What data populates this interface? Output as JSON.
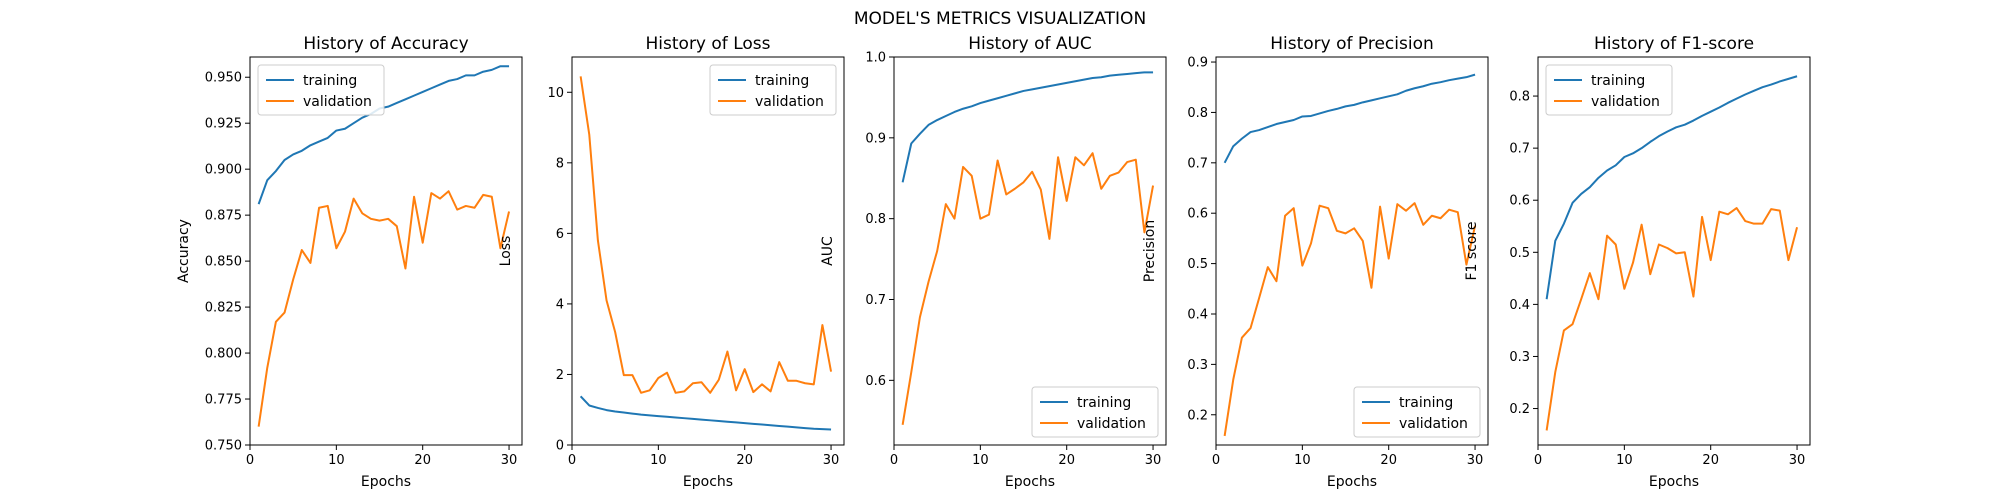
{
  "figure": {
    "suptitle": "MODEL'S METRICS VISUALIZATION"
  },
  "colors": {
    "training": "#1f77b4",
    "validation": "#ff7f0e",
    "axes": "#000000",
    "legend_border": "#cccccc"
  },
  "chart_data": [
    {
      "type": "line",
      "title": "History of Accuracy",
      "xlabel": "Epochs",
      "ylabel": "Accuracy",
      "xlim": [
        0,
        31.5
      ],
      "ylim": [
        0.75,
        0.961
      ],
      "xticks": [
        0,
        10,
        20,
        30
      ],
      "yticks": [
        0.75,
        0.775,
        0.8,
        0.825,
        0.85,
        0.875,
        0.9,
        0.925,
        0.95
      ],
      "ytick_labels": [
        "0.750",
        "0.775",
        "0.800",
        "0.825",
        "0.850",
        "0.875",
        "0.900",
        "0.925",
        "0.950"
      ],
      "legend_loc": "upper left",
      "x": [
        1,
        2,
        3,
        4,
        5,
        6,
        7,
        8,
        9,
        10,
        11,
        12,
        13,
        14,
        15,
        16,
        17,
        18,
        19,
        20,
        21,
        22,
        23,
        24,
        25,
        26,
        27,
        28,
        29,
        30
      ],
      "series": [
        {
          "name": "training",
          "values": [
            0.881,
            0.894,
            0.899,
            0.905,
            0.908,
            0.91,
            0.913,
            0.915,
            0.917,
            0.921,
            0.922,
            0.925,
            0.928,
            0.93,
            0.933,
            0.934,
            0.936,
            0.938,
            0.94,
            0.942,
            0.944,
            0.946,
            0.948,
            0.949,
            0.951,
            0.951,
            0.953,
            0.954,
            0.956,
            0.956
          ]
        },
        {
          "name": "validation",
          "values": [
            0.76,
            0.792,
            0.817,
            0.822,
            0.84,
            0.856,
            0.849,
            0.879,
            0.88,
            0.857,
            0.866,
            0.884,
            0.876,
            0.873,
            0.872,
            0.873,
            0.869,
            0.846,
            0.885,
            0.86,
            0.887,
            0.884,
            0.888,
            0.878,
            0.88,
            0.879,
            0.886,
            0.885,
            0.857,
            0.877
          ]
        }
      ]
    },
    {
      "type": "line",
      "title": "History of Loss",
      "xlabel": "Epochs",
      "ylabel": "Loss",
      "xlim": [
        0,
        31.5
      ],
      "ylim": [
        0,
        11
      ],
      "xticks": [
        0,
        10,
        20,
        30
      ],
      "yticks": [
        0,
        2,
        4,
        6,
        8,
        10
      ],
      "ytick_labels": [
        "0",
        "2",
        "4",
        "6",
        "8",
        "10"
      ],
      "legend_loc": "upper right",
      "x": [
        1,
        2,
        3,
        4,
        5,
        6,
        7,
        8,
        9,
        10,
        11,
        12,
        13,
        14,
        15,
        16,
        17,
        18,
        19,
        20,
        21,
        22,
        23,
        24,
        25,
        26,
        27,
        28,
        29,
        30
      ],
      "series": [
        {
          "name": "training",
          "values": [
            1.38,
            1.12,
            1.05,
            0.99,
            0.95,
            0.92,
            0.89,
            0.86,
            0.84,
            0.82,
            0.8,
            0.78,
            0.76,
            0.74,
            0.72,
            0.7,
            0.68,
            0.66,
            0.64,
            0.62,
            0.6,
            0.58,
            0.56,
            0.54,
            0.52,
            0.5,
            0.48,
            0.46,
            0.45,
            0.44
          ]
        },
        {
          "name": "validation",
          "values": [
            10.45,
            8.8,
            5.8,
            4.1,
            3.2,
            1.98,
            1.98,
            1.48,
            1.55,
            1.9,
            2.05,
            1.48,
            1.52,
            1.75,
            1.78,
            1.48,
            1.85,
            2.65,
            1.55,
            2.15,
            1.5,
            1.72,
            1.52,
            2.35,
            1.82,
            1.82,
            1.75,
            1.72,
            3.4,
            2.08
          ]
        }
      ]
    },
    {
      "type": "line",
      "title": "History of AUC",
      "xlabel": "Epochs",
      "ylabel": "AUC",
      "xlim": [
        0,
        31.5
      ],
      "ylim": [
        0.52,
        1.0
      ],
      "xticks": [
        0,
        10,
        20,
        30
      ],
      "yticks": [
        0.6,
        0.7,
        0.8,
        0.9,
        1.0
      ],
      "ytick_labels": [
        "0.6",
        "0.7",
        "0.8",
        "0.9",
        "1.0"
      ],
      "legend_loc": "lower right",
      "x": [
        1,
        2,
        3,
        4,
        5,
        6,
        7,
        8,
        9,
        10,
        11,
        12,
        13,
        14,
        15,
        16,
        17,
        18,
        19,
        20,
        21,
        22,
        23,
        24,
        25,
        26,
        27,
        28,
        29,
        30
      ],
      "series": [
        {
          "name": "training",
          "values": [
            0.845,
            0.893,
            0.905,
            0.916,
            0.922,
            0.927,
            0.932,
            0.936,
            0.939,
            0.943,
            0.946,
            0.949,
            0.952,
            0.955,
            0.958,
            0.96,
            0.962,
            0.964,
            0.966,
            0.968,
            0.97,
            0.972,
            0.974,
            0.975,
            0.977,
            0.978,
            0.979,
            0.98,
            0.981,
            0.981
          ]
        },
        {
          "name": "validation",
          "values": [
            0.545,
            0.61,
            0.678,
            0.722,
            0.76,
            0.818,
            0.8,
            0.864,
            0.853,
            0.8,
            0.805,
            0.872,
            0.83,
            0.837,
            0.845,
            0.858,
            0.836,
            0.775,
            0.876,
            0.822,
            0.876,
            0.866,
            0.881,
            0.837,
            0.853,
            0.857,
            0.87,
            0.873,
            0.783,
            0.841
          ]
        }
      ]
    },
    {
      "type": "line",
      "title": "History of Precision",
      "xlabel": "Epochs",
      "ylabel": "Precision",
      "xlim": [
        0,
        31.5
      ],
      "ylim": [
        0.14,
        0.91
      ],
      "xticks": [
        0,
        10,
        20,
        30
      ],
      "yticks": [
        0.2,
        0.3,
        0.4,
        0.5,
        0.6,
        0.7,
        0.8,
        0.9
      ],
      "ytick_labels": [
        "0.2",
        "0.3",
        "0.4",
        "0.5",
        "0.6",
        "0.7",
        "0.8",
        "0.9"
      ],
      "legend_loc": "lower right",
      "x": [
        1,
        2,
        3,
        4,
        5,
        6,
        7,
        8,
        9,
        10,
        11,
        12,
        13,
        14,
        15,
        16,
        17,
        18,
        19,
        20,
        21,
        22,
        23,
        24,
        25,
        26,
        27,
        28,
        29,
        30
      ],
      "series": [
        {
          "name": "training",
          "values": [
            0.7,
            0.733,
            0.748,
            0.761,
            0.765,
            0.771,
            0.777,
            0.781,
            0.785,
            0.792,
            0.793,
            0.798,
            0.803,
            0.807,
            0.812,
            0.815,
            0.82,
            0.824,
            0.828,
            0.832,
            0.836,
            0.843,
            0.848,
            0.852,
            0.857,
            0.86,
            0.864,
            0.867,
            0.87,
            0.875
          ]
        },
        {
          "name": "validation",
          "values": [
            0.158,
            0.27,
            0.353,
            0.372,
            0.432,
            0.493,
            0.465,
            0.595,
            0.61,
            0.496,
            0.54,
            0.615,
            0.61,
            0.565,
            0.56,
            0.57,
            0.545,
            0.452,
            0.613,
            0.51,
            0.618,
            0.605,
            0.62,
            0.577,
            0.595,
            0.59,
            0.607,
            0.602,
            0.498,
            0.575
          ]
        }
      ]
    },
    {
      "type": "line",
      "title": "History of F1-score",
      "xlabel": "Epochs",
      "ylabel": "F1 score",
      "xlim": [
        0,
        31.5
      ],
      "ylim": [
        0.13,
        0.875
      ],
      "xticks": [
        0,
        10,
        20,
        30
      ],
      "yticks": [
        0.2,
        0.3,
        0.4,
        0.5,
        0.6,
        0.7,
        0.8
      ],
      "ytick_labels": [
        "0.2",
        "0.3",
        "0.4",
        "0.5",
        "0.6",
        "0.7",
        "0.8"
      ],
      "legend_loc": "upper left",
      "x": [
        1,
        2,
        3,
        4,
        5,
        6,
        7,
        8,
        9,
        10,
        11,
        12,
        13,
        14,
        15,
        16,
        17,
        18,
        19,
        20,
        21,
        22,
        23,
        24,
        25,
        26,
        27,
        28,
        29,
        30
      ],
      "series": [
        {
          "name": "training",
          "values": [
            0.41,
            0.522,
            0.555,
            0.595,
            0.612,
            0.625,
            0.643,
            0.657,
            0.667,
            0.683,
            0.69,
            0.7,
            0.712,
            0.723,
            0.732,
            0.74,
            0.745,
            0.753,
            0.762,
            0.77,
            0.778,
            0.787,
            0.795,
            0.803,
            0.81,
            0.817,
            0.822,
            0.828,
            0.833,
            0.838
          ]
        },
        {
          "name": "validation",
          "values": [
            0.158,
            0.27,
            0.35,
            0.362,
            0.41,
            0.46,
            0.41,
            0.532,
            0.515,
            0.43,
            0.48,
            0.553,
            0.458,
            0.515,
            0.508,
            0.498,
            0.5,
            0.415,
            0.568,
            0.485,
            0.578,
            0.573,
            0.585,
            0.56,
            0.555,
            0.555,
            0.583,
            0.58,
            0.485,
            0.548
          ]
        }
      ]
    }
  ]
}
